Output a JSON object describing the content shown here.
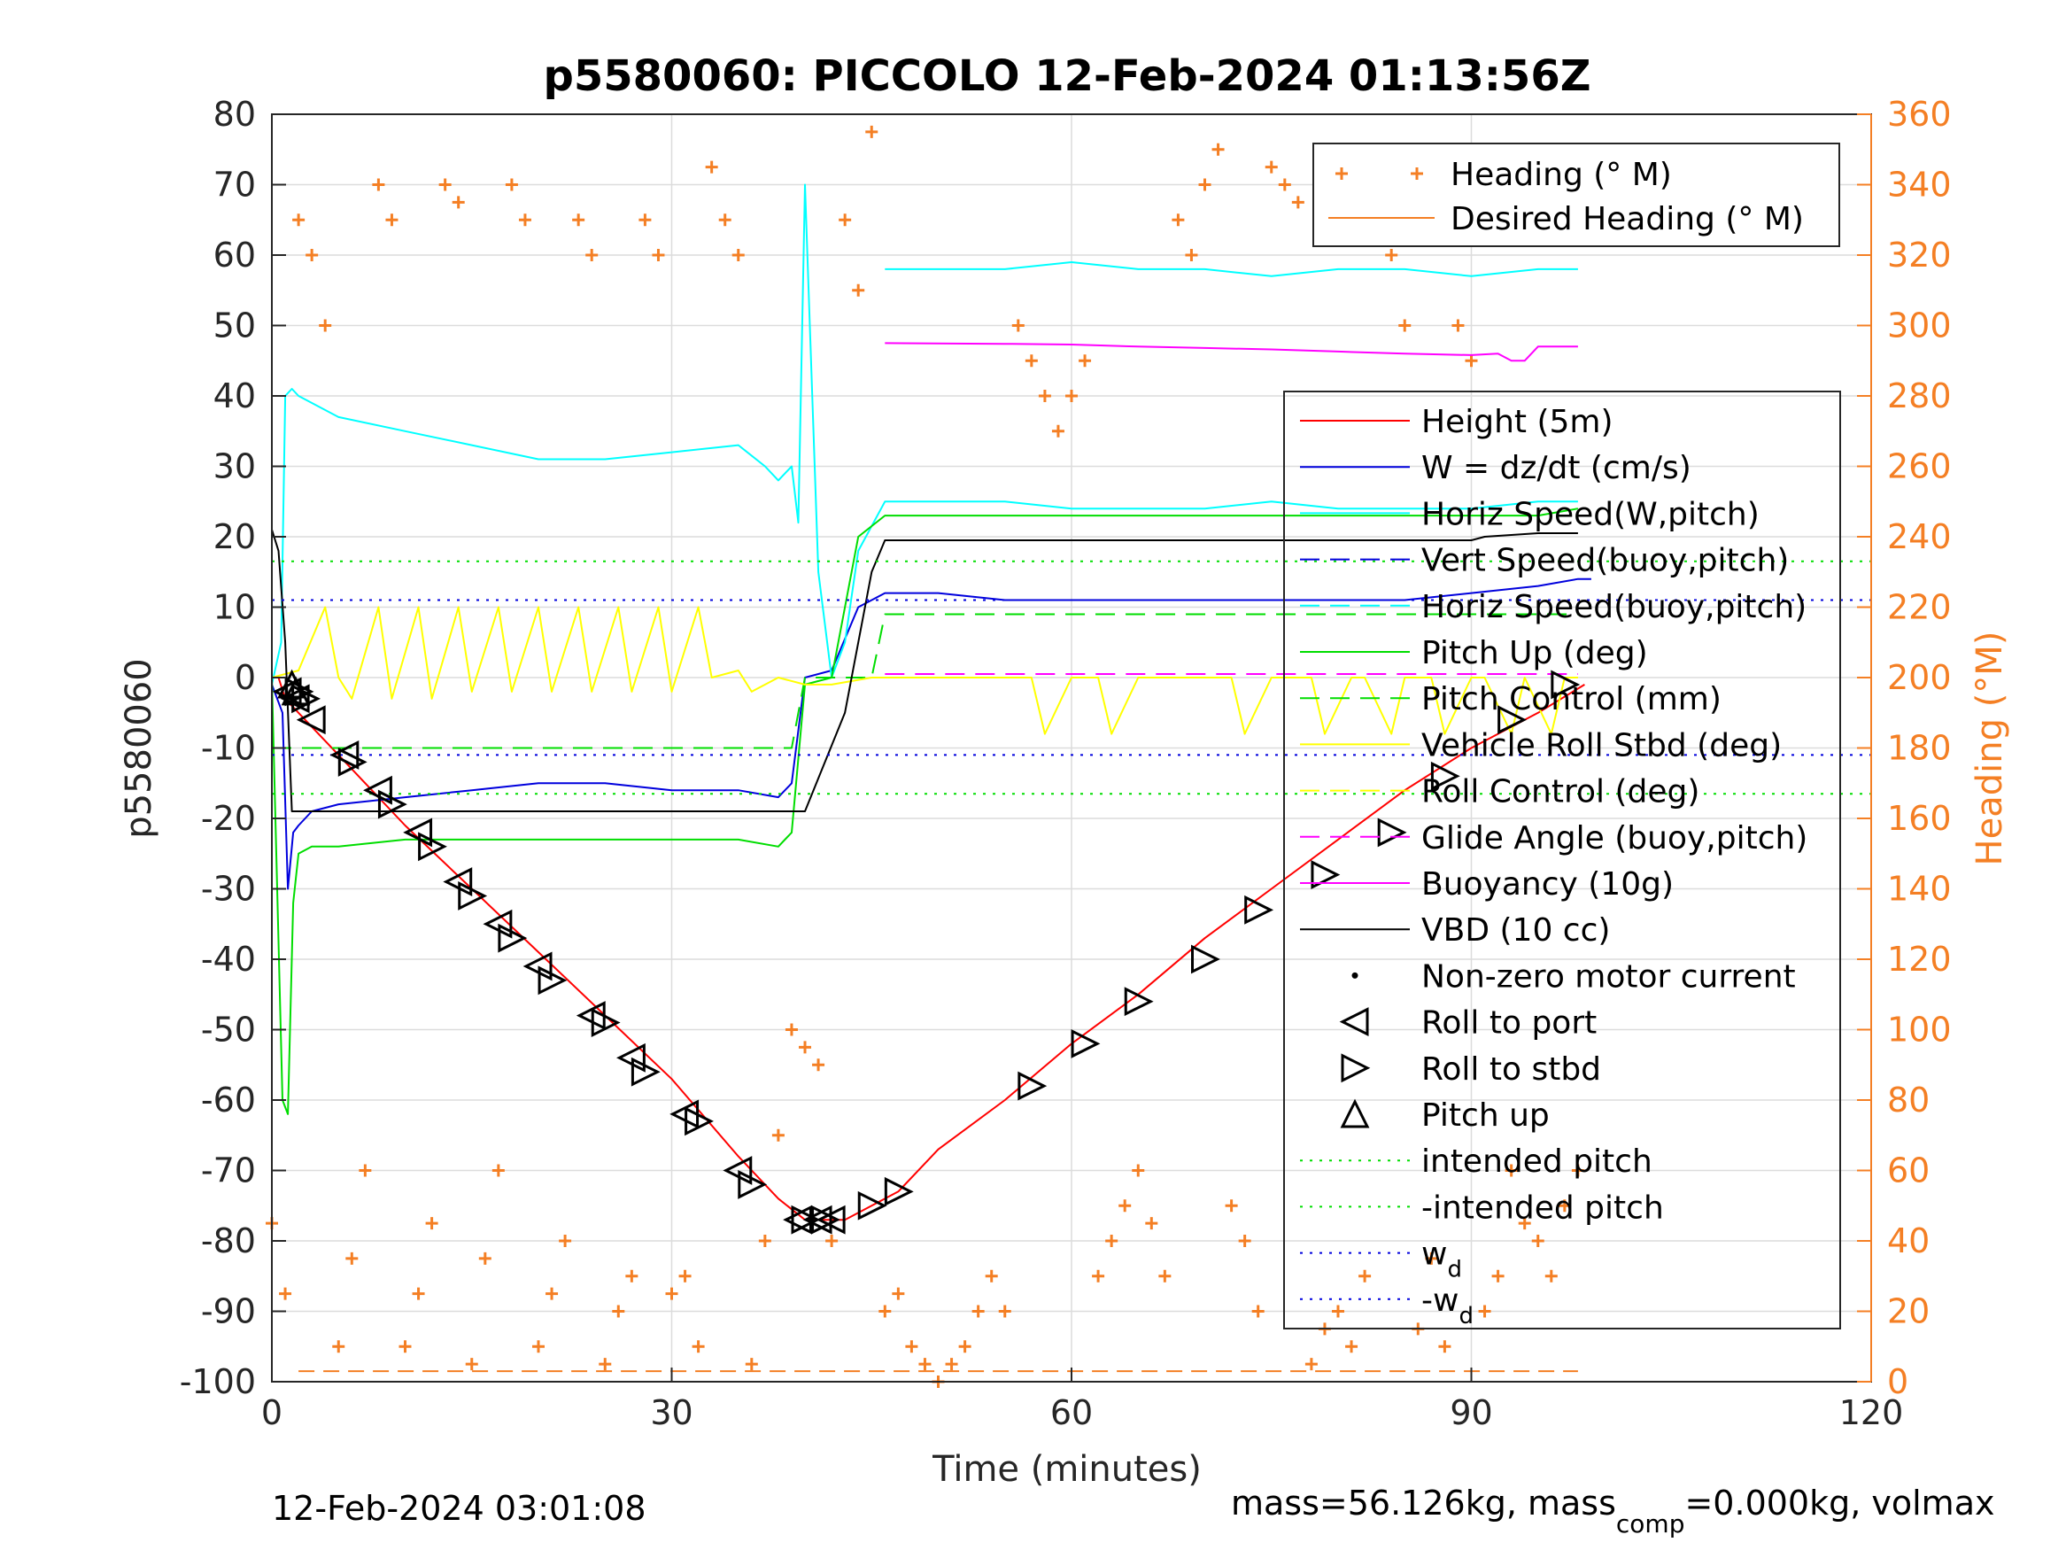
{
  "chart_data": {
    "type": "line",
    "title": "p5580060: PICCOLO 12-Feb-2024 01:13:56Z",
    "xlabel": "Time (minutes)",
    "ylabel": "p5580060",
    "y2label": "Heading (°M)",
    "xlim": [
      0,
      120
    ],
    "ylim": [
      -100,
      80
    ],
    "y2lim": [
      0,
      360
    ],
    "xticks": [
      "0",
      "30",
      "60",
      "90",
      "120"
    ],
    "yticks": [
      "80",
      "70",
      "60",
      "50",
      "40",
      "30",
      "20",
      "10",
      "0",
      "-10",
      "-20",
      "-30",
      "-40",
      "-50",
      "-60",
      "-70",
      "-80",
      "-90",
      "-100"
    ],
    "y2ticks": [
      "360",
      "340",
      "320",
      "300",
      "280",
      "260",
      "240",
      "220",
      "200",
      "180",
      "160",
      "140",
      "120",
      "100",
      "80",
      "60",
      "40",
      "20",
      "0"
    ],
    "grid": true,
    "footer_left": "12-Feb-2024 03:01:08",
    "footer_right": "mass=56.126kg, mass",
    "footer_right_sub": "comp",
    "footer_right_tail": "=0.000kg, volmax",
    "colors": {
      "heading": "#f47f24",
      "height": "#ff0000",
      "w": "#0000dd",
      "horiz_speed_w": "#00ffff",
      "pitch": "#00dd00",
      "roll": "#ffff00",
      "glide": "#ff00ff",
      "vbd": "#000000"
    },
    "legend_heading": {
      "placement": "top-right",
      "entries": [
        "Heading (° M)",
        "Desired Heading (° M)"
      ]
    },
    "legend_main": {
      "placement": "right",
      "entries": [
        {
          "label": "Height (5m)",
          "symbol": "line",
          "color": "#ff0000"
        },
        {
          "label": "W = dz/dt (cm/s)",
          "symbol": "line",
          "color": "#0000dd"
        },
        {
          "label": "Horiz Speed(W,pitch)",
          "symbol": "line",
          "color": "#00ffff"
        },
        {
          "label": "Vert Speed(buoy,pitch)",
          "symbol": "dash",
          "color": "#0000dd"
        },
        {
          "label": "Horiz Speed(buoy,pitch)",
          "symbol": "dash",
          "color": "#00ffff"
        },
        {
          "label": "Pitch Up (deg)",
          "symbol": "line",
          "color": "#00dd00"
        },
        {
          "label": "Pitch Control (mm)",
          "symbol": "dash",
          "color": "#00dd00"
        },
        {
          "label": "Vehicle Roll Stbd (deg)",
          "symbol": "line",
          "color": "#ffff00"
        },
        {
          "label": "Roll Control (deg)",
          "symbol": "dash",
          "color": "#ffff00"
        },
        {
          "label": "Glide Angle (buoy,pitch)",
          "symbol": "dash",
          "color": "#ff00ff"
        },
        {
          "label": "Buoyancy (10g)",
          "symbol": "line",
          "color": "#ff00ff"
        },
        {
          "label": "VBD (10 cc)",
          "symbol": "line",
          "color": "#000000"
        },
        {
          "label": "Non-zero motor current",
          "symbol": "dot",
          "color": "#000000"
        },
        {
          "label": "Roll to port",
          "symbol": "tri-left",
          "color": "#000000"
        },
        {
          "label": "Roll to stbd",
          "symbol": "tri-right",
          "color": "#000000"
        },
        {
          "label": "Pitch up",
          "symbol": "tri-up",
          "color": "#000000"
        },
        {
          "label": "intended pitch",
          "symbol": "dot-line",
          "color": "#00dd00"
        },
        {
          "label": "-intended pitch",
          "symbol": "dot-line",
          "color": "#00dd00"
        },
        {
          "label": "w",
          "sub": "d",
          "symbol": "dot-line",
          "color": "#0000dd"
        },
        {
          "label": "-w",
          "sub": "d",
          "symbol": "dot-line",
          "color": "#0000dd"
        }
      ]
    },
    "series": [
      {
        "name": "Height (5m)",
        "x": [
          0.5,
          1,
          2,
          5,
          10,
          15,
          20,
          25,
          30,
          35,
          38,
          40,
          43,
          45,
          47,
          50,
          55,
          60,
          65,
          70,
          75,
          80,
          85,
          90,
          95,
          98.5
        ],
        "y": [
          0,
          -3,
          -5,
          -11,
          -21,
          -30,
          -39,
          -48,
          -57,
          -68,
          -74,
          -77,
          -77,
          -75,
          -73,
          -67,
          -60,
          -52,
          -45,
          -37,
          -30,
          -23,
          -16,
          -10,
          -5,
          -1
        ]
      },
      {
        "name": "W = dz/dt (cm/s)",
        "x": [
          0,
          0.8,
          1.2,
          1.6,
          2,
          3,
          5,
          10,
          15,
          20,
          25,
          30,
          35,
          38,
          39,
          40,
          42,
          44,
          46,
          50,
          55,
          60,
          65,
          70,
          75,
          80,
          85,
          90,
          95,
          98,
          99
        ],
        "y": [
          -1,
          -5,
          -30,
          -22,
          -21,
          -19,
          -18,
          -17,
          -16,
          -15,
          -15,
          -16,
          -16,
          -17,
          -15,
          0,
          1,
          10,
          12,
          12,
          11,
          11,
          11,
          11,
          11,
          11,
          11,
          12,
          13,
          14,
          14
        ]
      },
      {
        "name": "Horiz Speed(W,pitch)",
        "x": [
          0,
          0.7,
          1,
          1.5,
          2,
          5,
          10,
          15,
          20,
          25,
          30,
          35,
          37,
          38,
          39,
          39.5,
          40,
          41,
          42,
          43,
          44,
          46,
          50,
          55,
          60,
          65,
          70,
          75,
          80,
          85,
          90,
          95,
          98
        ],
        "y": [
          -1,
          5,
          40,
          41,
          40,
          37,
          35,
          33,
          31,
          31,
          32,
          33,
          30,
          28,
          30,
          22,
          70,
          15,
          0,
          5,
          18,
          25,
          25,
          25,
          24,
          24,
          24,
          25,
          24,
          24,
          24,
          25,
          25
        ]
      },
      {
        "name": "Horiz Speed(buoy,pitch)",
        "x": [
          46,
          50,
          55,
          60,
          65,
          70,
          75,
          80,
          85,
          90,
          95,
          98
        ],
        "y": [
          58,
          58,
          58,
          59,
          58,
          58,
          57,
          58,
          58,
          57,
          58,
          58
        ]
      },
      {
        "name": "Pitch Up (deg)",
        "x": [
          0,
          0.8,
          1.2,
          1.6,
          2,
          3,
          5,
          10,
          15,
          20,
          25,
          30,
          35,
          38,
          39,
          40,
          42,
          44,
          46,
          50,
          55,
          60,
          65,
          70,
          75,
          80,
          85,
          90,
          95,
          98
        ],
        "y": [
          0,
          -60,
          -62,
          -32,
          -25,
          -24,
          -24,
          -23,
          -23,
          -23,
          -23,
          -23,
          -23,
          -24,
          -22,
          -1,
          0,
          20,
          23,
          23,
          23,
          23,
          23,
          23,
          23,
          23,
          23,
          23,
          23,
          24
        ]
      },
      {
        "name": "Pitch Control (mm)",
        "x": [
          0,
          2,
          38,
          39,
          40,
          45,
          46,
          98
        ],
        "y": [
          -10,
          -10,
          -10,
          -10,
          0,
          0,
          9,
          9
        ]
      },
      {
        "name": "Vehicle Roll Stbd (deg)",
        "x": [
          0,
          2,
          4,
          5,
          6,
          8,
          9,
          11,
          12,
          14,
          15,
          17,
          18,
          20,
          21,
          23,
          24,
          26,
          27,
          29,
          30,
          32,
          33,
          35,
          36,
          38,
          40,
          42,
          45,
          50,
          55,
          57,
          58,
          60,
          62,
          63,
          65,
          70,
          72,
          73,
          75,
          78,
          79,
          81,
          82,
          84,
          85,
          87,
          88,
          90,
          91,
          93,
          94,
          96,
          97,
          98
        ],
        "y": [
          0,
          1,
          10,
          0,
          -3,
          10,
          -3,
          10,
          -3,
          10,
          -2,
          10,
          -2,
          10,
          -2,
          10,
          -2,
          10,
          -2,
          10,
          -2,
          10,
          0,
          1,
          -2,
          0,
          -1,
          -1,
          0,
          0,
          0,
          0,
          -8,
          0,
          0,
          -8,
          0,
          0,
          0,
          -8,
          0,
          0,
          -8,
          0,
          0,
          -8,
          0,
          0,
          -8,
          0,
          0,
          -8,
          0,
          -8,
          0,
          0
        ]
      },
      {
        "name": "Glide Angle (buoy,pitch)",
        "x": [
          46,
          98
        ],
        "y": [
          0.5,
          0.5
        ]
      },
      {
        "name": "Buoyancy (10g)",
        "x": [
          46,
          55,
          60,
          65,
          70,
          75,
          80,
          85,
          90,
          92,
          93,
          94,
          95,
          98
        ],
        "y": [
          47.5,
          47.4,
          47.3,
          47,
          46.8,
          46.6,
          46.3,
          46,
          45.8,
          46,
          45,
          45,
          47,
          47
        ]
      },
      {
        "name": "VBD (10 cc)",
        "x": [
          0,
          0.5,
          1,
          1.5,
          2,
          5,
          10,
          20,
          30,
          38,
          39,
          40,
          43,
          45,
          46,
          50,
          60,
          70,
          80,
          90,
          91,
          95,
          98
        ],
        "y": [
          21,
          18,
          5,
          -19,
          -19,
          -19,
          -19,
          -19,
          -19,
          -19,
          -19,
          -19,
          -5,
          15,
          19.5,
          19.5,
          19.5,
          19.5,
          19.5,
          19.5,
          20,
          20.5,
          20.5
        ]
      },
      {
        "name": "intended pitch",
        "x": [
          0,
          120
        ],
        "y": [
          16.5,
          16.5
        ]
      },
      {
        "name": "-intended pitch",
        "x": [
          0,
          120
        ],
        "y": [
          -16.5,
          -16.5
        ]
      },
      {
        "name": "w",
        "x": [
          0,
          120
        ],
        "y": [
          11,
          11
        ]
      },
      {
        "name": "-w",
        "x": [
          0,
          120
        ],
        "y": [
          -11,
          -11
        ]
      }
    ],
    "markers": {
      "roll_to_port": [
        [
          1.2,
          -2
        ],
        [
          1.8,
          -3
        ],
        [
          3,
          -6
        ],
        [
          5.5,
          -11
        ],
        [
          8,
          -16
        ],
        [
          11,
          -22
        ],
        [
          14,
          -29
        ],
        [
          17,
          -35
        ],
        [
          20,
          -41
        ],
        [
          24,
          -48
        ],
        [
          27,
          -54
        ],
        [
          31,
          -62
        ],
        [
          35,
          -70
        ],
        [
          39.5,
          -77
        ],
        [
          41,
          -77
        ],
        [
          42,
          -77
        ]
      ],
      "roll_to_stbd": [
        [
          2,
          -2
        ],
        [
          2.5,
          -3
        ],
        [
          6,
          -12
        ],
        [
          9,
          -18
        ],
        [
          12,
          -24
        ],
        [
          15,
          -31
        ],
        [
          18,
          -37
        ],
        [
          21,
          -43
        ],
        [
          25,
          -49
        ],
        [
          28,
          -56
        ],
        [
          32,
          -63
        ],
        [
          36,
          -72
        ],
        [
          40,
          -77
        ],
        [
          41.5,
          -77
        ],
        [
          45,
          -75
        ],
        [
          47,
          -73
        ],
        [
          57,
          -58
        ],
        [
          61,
          -52
        ],
        [
          65,
          -46
        ],
        [
          70,
          -40
        ],
        [
          74,
          -33
        ],
        [
          79,
          -28
        ],
        [
          84,
          -22
        ],
        [
          88,
          -14
        ],
        [
          93,
          -6
        ],
        [
          97,
          -1
        ]
      ],
      "pitch_up": [
        [
          1.5,
          -1
        ],
        [
          1.8,
          -2
        ]
      ]
    },
    "heading": {
      "x": [
        0,
        1,
        2,
        3,
        4,
        5,
        6,
        7,
        8,
        9,
        10,
        11,
        12,
        13,
        14,
        15,
        16,
        17,
        18,
        19,
        20,
        21,
        22,
        23,
        24,
        25,
        26,
        27,
        28,
        29,
        30,
        31,
        32,
        33,
        34,
        35,
        36,
        37,
        38,
        39,
        40,
        41,
        42,
        43,
        44,
        45,
        46,
        47,
        48,
        49,
        50,
        51,
        52,
        53,
        54,
        55,
        56,
        57,
        58,
        59,
        60,
        61,
        62,
        63,
        64,
        65,
        66,
        67,
        68,
        69,
        70,
        71,
        72,
        73,
        74,
        75,
        76,
        77,
        78,
        79,
        80,
        81,
        82,
        83,
        84,
        85,
        86,
        87,
        88,
        89,
        90,
        91,
        92,
        93,
        94,
        95,
        96,
        97,
        98
      ],
      "y": [
        45,
        25,
        330,
        320,
        300,
        10,
        35,
        60,
        340,
        330,
        10,
        25,
        45,
        340,
        335,
        5,
        35,
        60,
        340,
        330,
        10,
        25,
        40,
        330,
        320,
        5,
        20,
        30,
        330,
        320,
        25,
        30,
        10,
        345,
        330,
        320,
        5,
        40,
        70,
        100,
        95,
        90,
        40,
        330,
        310,
        355,
        20,
        25,
        10,
        5,
        0,
        5,
        10,
        20,
        30,
        20,
        300,
        290,
        280,
        270,
        280,
        290,
        30,
        40,
        50,
        60,
        45,
        30,
        330,
        320,
        340,
        350,
        50,
        40,
        20,
        345,
        340,
        335,
        5,
        15,
        20,
        10,
        30,
        340,
        320,
        300,
        15,
        35,
        10,
        300,
        290,
        20,
        30,
        60,
        45,
        40,
        30,
        50,
        60
      ]
    }
  }
}
